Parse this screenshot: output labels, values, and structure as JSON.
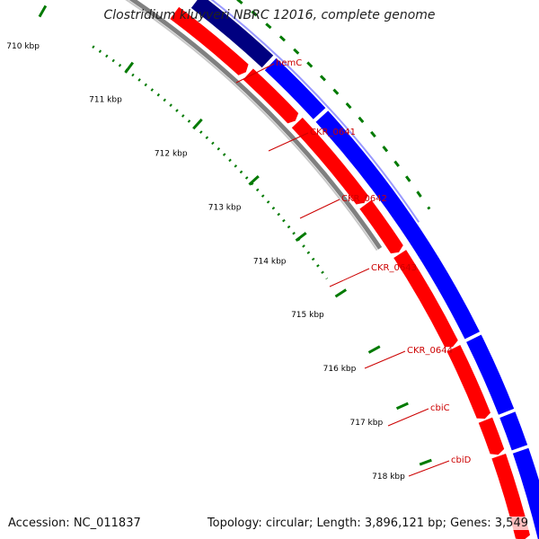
{
  "title": "Clostridium kluyveri NBRC 12016, complete genome",
  "accession": "Accession: NC_011837",
  "summary": "Topology: circular; Length: 3,896,121 bp; Genes: 3,549",
  "ruler_ticks": [
    {
      "label": "710 kbp",
      "kbp": 710
    },
    {
      "label": "711 kbp",
      "kbp": 711
    },
    {
      "label": "712 kbp",
      "kbp": 712
    },
    {
      "label": "713 kbp",
      "kbp": 713
    },
    {
      "label": "714 kbp",
      "kbp": 714
    },
    {
      "label": "715 kbp",
      "kbp": 715
    },
    {
      "label": "716 kbp",
      "kbp": 716
    },
    {
      "label": "717 kbp",
      "kbp": 717
    },
    {
      "label": "718 kbp",
      "kbp": 718
    }
  ],
  "genes": [
    "hemC",
    "CKR_0641",
    "CKR_0642",
    "CKR_0643",
    "CKR_0644",
    "cbiC",
    "cbiD"
  ],
  "colors": {
    "forward": "#ff0000",
    "reverse": "#0000ff",
    "highlight": "#000080",
    "backbone": "#808080",
    "ruler": "#007a00",
    "label": "#cc0000"
  }
}
